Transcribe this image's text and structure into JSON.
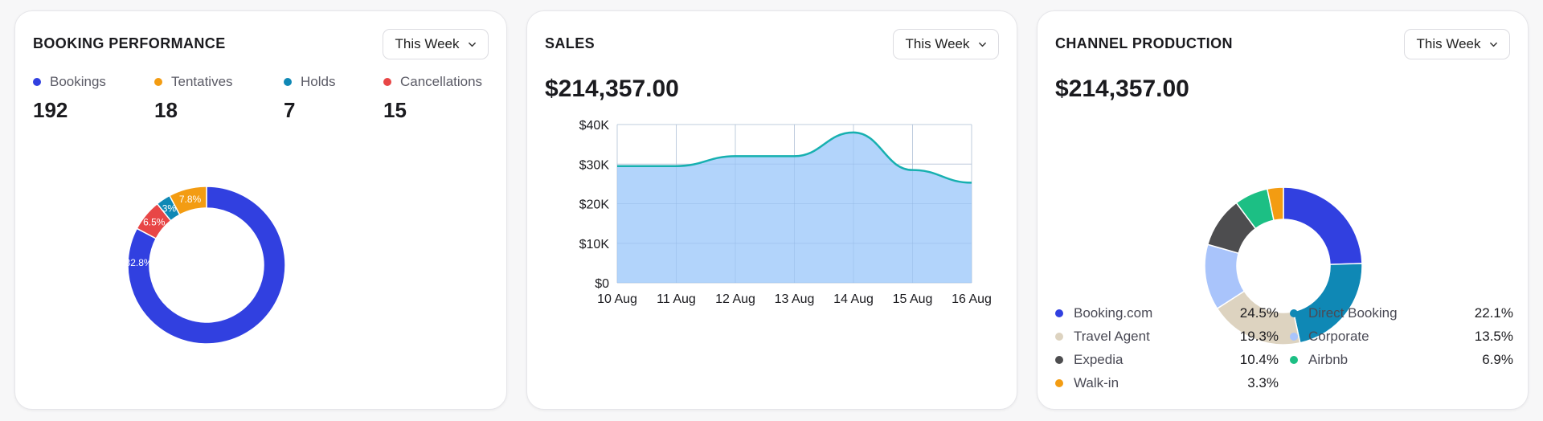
{
  "booking": {
    "title": "BOOKING PERFORMANCE",
    "period": "This Week",
    "stats": [
      {
        "label": "Bookings",
        "value": "192",
        "color": "#3140e0"
      },
      {
        "label": "Tentatives",
        "value": "18",
        "color": "#f39c12"
      },
      {
        "label": "Holds",
        "value": "7",
        "color": "#0f88b5"
      },
      {
        "label": "Cancellations",
        "value": "15",
        "color": "#e84646"
      }
    ],
    "donut_labels": [
      "82.8%",
      "7.8%",
      "3%",
      "6.5%"
    ]
  },
  "sales": {
    "title": "SALES",
    "period": "This Week",
    "total": "$214,357.00"
  },
  "channel": {
    "title": "CHANNEL PRODUCTION",
    "period": "This Week",
    "total": "$214,357.00",
    "legend": [
      {
        "label": "Booking.com",
        "value": "24.5%",
        "color": "#3140e0"
      },
      {
        "label": "Direct Booking",
        "value": "22.1%",
        "color": "#0f88b5"
      },
      {
        "label": "Travel Agent",
        "value": "19.3%",
        "color": "#ddd3c0"
      },
      {
        "label": "Corporate",
        "value": "13.5%",
        "color": "#a9c4fb"
      },
      {
        "label": "Expedia",
        "value": "10.4%",
        "color": "#4d4d4f"
      },
      {
        "label": "Airbnb",
        "value": "6.9%",
        "color": "#1cbf84"
      },
      {
        "label": "Walk-in",
        "value": "3.3%",
        "color": "#f39c12"
      }
    ]
  },
  "chart_data": [
    {
      "type": "pie",
      "categories": [
        "Bookings",
        "Tentatives",
        "Holds",
        "Cancellations"
      ],
      "values": [
        82.8,
        7.8,
        3,
        6.5
      ],
      "value_labels": [
        "82.8%",
        "7.8%",
        "3%",
        "6.5%"
      ],
      "colors": [
        "#3140e0",
        "#f39c12",
        "#0f88b5",
        "#e84646"
      ]
    },
    {
      "type": "area",
      "x": [
        "10 Aug",
        "11 Aug",
        "12 Aug",
        "13 Aug",
        "14 Aug",
        "15 Aug",
        "16 Aug"
      ],
      "values": [
        29500,
        29500,
        32000,
        32000,
        38000,
        28500,
        25300
      ],
      "ylim": [
        0,
        40000
      ],
      "yticks": [
        "$0",
        "$10K",
        "$20K",
        "$30K",
        "$40K"
      ],
      "grid": true,
      "line_color": "#17b0b0",
      "fill_color": "#aed2fb"
    },
    {
      "type": "pie",
      "categories": [
        "Booking.com",
        "Direct Booking",
        "Travel Agent",
        "Corporate",
        "Expedia",
        "Airbnb",
        "Walk-in"
      ],
      "values": [
        24.5,
        22.1,
        19.3,
        13.5,
        10.4,
        6.9,
        3.3
      ],
      "colors": [
        "#3140e0",
        "#0f88b5",
        "#ddd3c0",
        "#a9c4fb",
        "#4d4d4f",
        "#1cbf84",
        "#f39c12"
      ]
    }
  ]
}
